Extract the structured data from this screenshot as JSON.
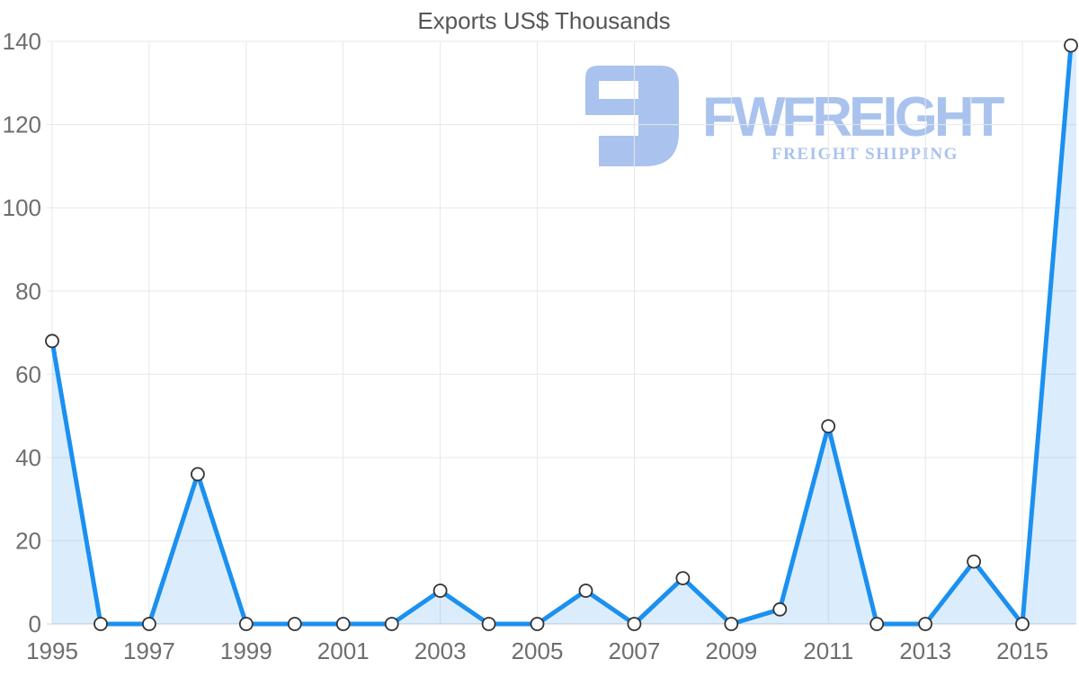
{
  "title": "Exports US$ Thousands",
  "watermark": {
    "brand": "FWFREIGHT",
    "tagline": "FREIGHT SHIPPING",
    "icon": "fwfreight-logo-icon",
    "color": "#a9c3ee"
  },
  "axes": {
    "y_ticks": [
      "0",
      "20",
      "40",
      "60",
      "80",
      "100",
      "120",
      "140"
    ],
    "x_ticks": [
      "1995",
      "1997",
      "1999",
      "2001",
      "2003",
      "2005",
      "2007",
      "2009",
      "2011",
      "2013",
      "2015"
    ]
  },
  "colors": {
    "line": "#1b90f0",
    "fill": "rgba(30,144,242,0.16)",
    "marker_fill": "#ffffff",
    "marker_stroke": "#333333",
    "grid": "#e7e7e7",
    "zero_line": "#cfcfcf",
    "tick_label": "#6e6e6e",
    "title": "#565656"
  },
  "chart_data": {
    "type": "area",
    "title": "Exports US$ Thousands",
    "x": [
      1995,
      1996,
      1997,
      1998,
      1999,
      2000,
      2001,
      2002,
      2003,
      2004,
      2005,
      2006,
      2007,
      2008,
      2009,
      2010,
      2011,
      2012,
      2013,
      2014,
      2015,
      2016
    ],
    "values": [
      68,
      0,
      0,
      36,
      0,
      0,
      0,
      0,
      8,
      0,
      0,
      8,
      0,
      11,
      0,
      3.5,
      47.5,
      0,
      0,
      15,
      0,
      139
    ],
    "xlabel": "",
    "ylabel": "",
    "ylim": [
      0,
      140
    ],
    "ytick_step": 20,
    "xtick_interval": 2,
    "grid": true,
    "legend": false,
    "markers": true
  }
}
